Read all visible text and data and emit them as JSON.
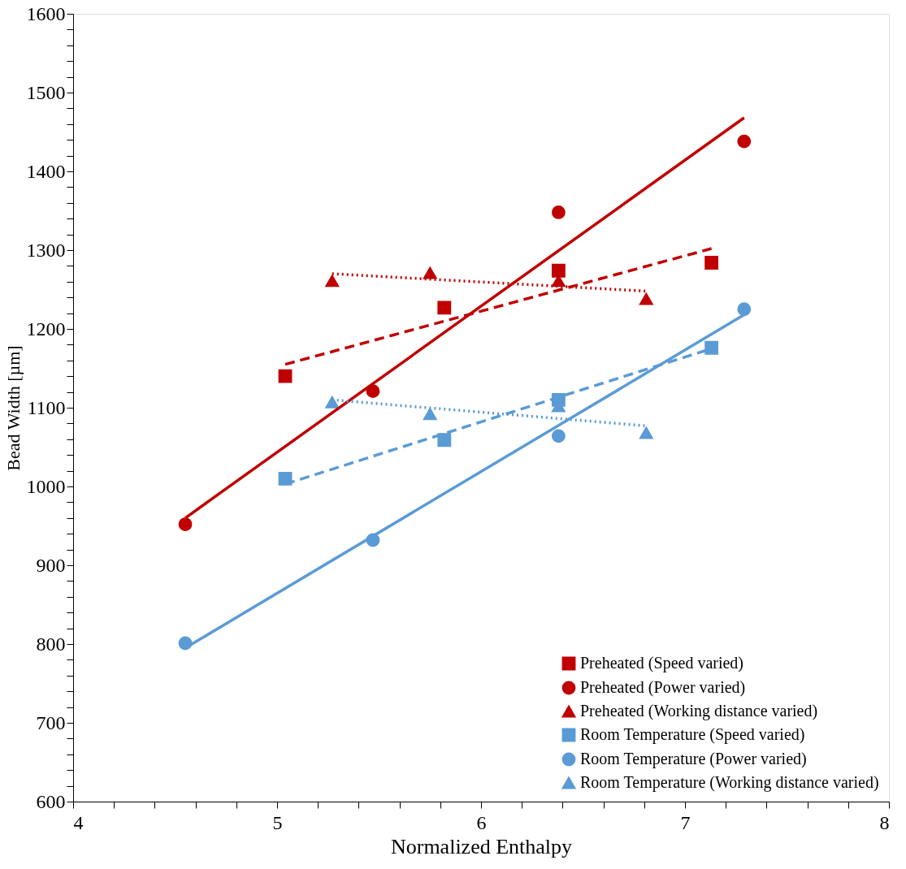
{
  "chart_data": {
    "type": "scatter",
    "xlabel": "Normalized Enthalpy",
    "ylabel": "Bead Width [µm]",
    "xlim": [
      4,
      8
    ],
    "ylim": [
      600,
      1600
    ],
    "xticks": [
      4,
      {
        "value": 4.2,
        "label": null
      },
      {
        "value": 4.4,
        "label": null
      },
      {
        "value": 4.6,
        "label": null
      },
      {
        "value": 4.8,
        "label": null
      },
      5,
      {
        "value": 5.2,
        "label": null
      },
      {
        "value": 5.4,
        "label": null
      },
      {
        "value": 5.6,
        "label": null
      },
      {
        "value": 5.8,
        "label": null
      },
      6,
      {
        "value": 6.2,
        "label": null
      },
      {
        "value": 6.4,
        "label": null
      },
      {
        "value": 6.6,
        "label": null
      },
      {
        "value": 6.8,
        "label": null
      },
      7,
      {
        "value": 7.2,
        "label": null
      },
      {
        "value": 7.4,
        "label": null
      },
      {
        "value": 7.6,
        "label": null
      },
      {
        "value": 7.8,
        "label": null
      },
      8
    ],
    "yticks": [
      600,
      {
        "value": 620,
        "label": null
      },
      {
        "value": 640,
        "label": null
      },
      {
        "value": 660,
        "label": null
      },
      {
        "value": 680,
        "label": null
      },
      700,
      {
        "value": 720,
        "label": null
      },
      {
        "value": 740,
        "label": null
      },
      {
        "value": 760,
        "label": null
      },
      {
        "value": 780,
        "label": null
      },
      800,
      {
        "value": 820,
        "label": null
      },
      {
        "value": 840,
        "label": null
      },
      {
        "value": 860,
        "label": null
      },
      {
        "value": 880,
        "label": null
      },
      900,
      {
        "value": 920,
        "label": null
      },
      {
        "value": 940,
        "label": null
      },
      {
        "value": 960,
        "label": null
      },
      {
        "value": 980,
        "label": null
      },
      1000,
      {
        "value": 1020,
        "label": null
      },
      {
        "value": 1040,
        "label": null
      },
      {
        "value": 1060,
        "label": null
      },
      {
        "value": 1080,
        "label": null
      },
      1100,
      {
        "value": 1120,
        "label": null
      },
      {
        "value": 1140,
        "label": null
      },
      {
        "value": 1160,
        "label": null
      },
      {
        "value": 1180,
        "label": null
      },
      1200,
      {
        "value": 1220,
        "label": null
      },
      {
        "value": 1240,
        "label": null
      },
      {
        "value": 1260,
        "label": null
      },
      {
        "value": 1280,
        "label": null
      },
      1300,
      {
        "value": 1320,
        "label": null
      },
      {
        "value": 1340,
        "label": null
      },
      {
        "value": 1360,
        "label": null
      },
      {
        "value": 1380,
        "label": null
      },
      1400,
      {
        "value": 1420,
        "label": null
      },
      {
        "value": 1440,
        "label": null
      },
      {
        "value": 1460,
        "label": null
      },
      {
        "value": 1480,
        "label": null
      },
      1500,
      {
        "value": 1520,
        "label": null
      },
      {
        "value": 1540,
        "label": null
      },
      {
        "value": 1560,
        "label": null
      },
      {
        "value": 1580,
        "label": null
      },
      1600
    ],
    "grid": false,
    "legend": "bottom right",
    "series": [
      {
        "name": "Preheated (Speed varied)",
        "type": "scatter",
        "marker": "square",
        "color": "#c00000",
        "x": [
          5.04,
          5.82,
          6.38,
          7.13
        ],
        "values": [
          1140,
          1227,
          1274,
          1284
        ]
      },
      {
        "name": "Preheated (Power varied)",
        "type": "scatter",
        "marker": "circle",
        "color": "#c00000",
        "x": [
          4.55,
          5.47,
          6.38,
          7.29
        ],
        "values": [
          952,
          1121,
          1348,
          1438
        ]
      },
      {
        "name": "Preheated (Working distance varied)",
        "type": "scatter",
        "marker": "triangle",
        "color": "#c00000",
        "x": [
          5.27,
          5.75,
          6.38,
          6.81
        ],
        "values": [
          1261,
          1271,
          1261,
          1238
        ]
      },
      {
        "name": "Room Temperature (Speed varied)",
        "type": "scatter",
        "marker": "square",
        "color": "#5b9bd5",
        "x": [
          5.04,
          5.82,
          6.38,
          7.13
        ],
        "values": [
          1010,
          1059,
          1110,
          1176
        ]
      },
      {
        "name": "Room Temperature (Power varied)",
        "type": "scatter",
        "marker": "circle",
        "color": "#5b9bd5",
        "x": [
          4.55,
          5.47,
          6.38,
          7.29
        ],
        "values": [
          801,
          932,
          1064,
          1225
        ]
      },
      {
        "name": "Room Temperature (Working distance varied)",
        "type": "scatter",
        "marker": "triangle",
        "color": "#5b9bd5",
        "x": [
          5.27,
          5.75,
          6.38,
          6.81
        ],
        "values": [
          1107,
          1092,
          1102,
          1068
        ]
      },
      {
        "type": "line",
        "line_style": "dashed",
        "color": "#c00000",
        "x": [
          5.04,
          7.13
        ],
        "values": [
          1155,
          1302
        ]
      },
      {
        "type": "line",
        "line_style": "solid",
        "color": "#c00000",
        "x": [
          4.55,
          7.29
        ],
        "values": [
          960,
          1468
        ]
      },
      {
        "type": "line",
        "line_style": "dotted",
        "color": "#c00000",
        "x": [
          5.27,
          6.81
        ],
        "values": [
          1270,
          1248
        ]
      },
      {
        "type": "line",
        "line_style": "dashed",
        "color": "#5b9bd5",
        "x": [
          5.04,
          7.13
        ],
        "values": [
          1003,
          1175
        ]
      },
      {
        "type": "line",
        "line_style": "solid",
        "color": "#5b9bd5",
        "x": [
          4.55,
          7.29
        ],
        "values": [
          795,
          1218
        ]
      },
      {
        "type": "line",
        "line_style": "dotted",
        "color": "#5b9bd5",
        "x": [
          5.27,
          6.81
        ],
        "values": [
          1110,
          1077
        ]
      }
    ]
  }
}
